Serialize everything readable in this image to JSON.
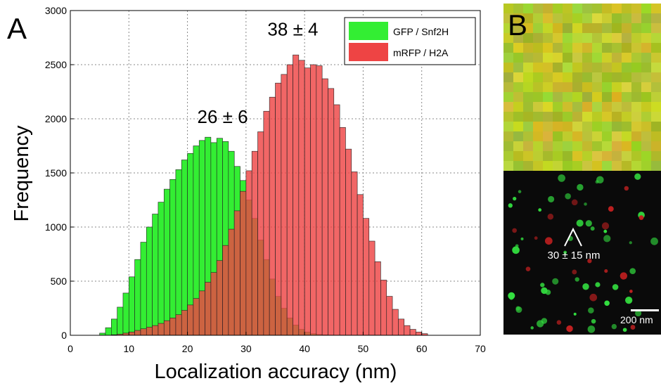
{
  "panel_a_label": "A",
  "panel_b_label": "B",
  "chart_data": {
    "type": "bar",
    "xlabel": "Localization accuracy (nm)",
    "ylabel": "Frequency",
    "xlim": [
      0,
      70
    ],
    "ylim": [
      0,
      3000
    ],
    "xticks": [
      0,
      10,
      20,
      30,
      40,
      50,
      60,
      70
    ],
    "yticks": [
      0,
      500,
      1000,
      1500,
      2000,
      2500,
      3000
    ],
    "grid": true,
    "legend_position": "top-right",
    "bin_start": 5,
    "bin_width": 1,
    "series": [
      {
        "name": "GFP / Snf2H",
        "color": "#33ee33",
        "values": [
          20,
          70,
          150,
          260,
          390,
          540,
          700,
          860,
          1000,
          1120,
          1230,
          1350,
          1440,
          1530,
          1620,
          1680,
          1750,
          1800,
          1830,
          1780,
          1820,
          1790,
          1700,
          1560,
          1430,
          1250,
          1080,
          880,
          700,
          520,
          360,
          250,
          160,
          95,
          55,
          30,
          15,
          8,
          4,
          2
        ]
      },
      {
        "name": "mRFP / H2A",
        "color": "#ee4444",
        "values": [
          0,
          0,
          5,
          10,
          20,
          30,
          45,
          60,
          75,
          90,
          110,
          135,
          160,
          190,
          230,
          280,
          340,
          410,
          490,
          580,
          690,
          830,
          980,
          1150,
          1330,
          1520,
          1700,
          1880,
          2070,
          2200,
          2330,
          2410,
          2500,
          2590,
          2540,
          2470,
          2500,
          2490,
          2370,
          2280,
          2130,
          1920,
          1720,
          1510,
          1300,
          1080,
          870,
          680,
          510,
          360,
          240,
          150,
          90,
          55,
          30,
          15
        ]
      }
    ],
    "annotations": [
      {
        "text": "26 ± 6",
        "x": 26,
        "y": 1960
      },
      {
        "text": "38 ± 4",
        "x": 38,
        "y": 2770
      }
    ]
  },
  "panel_b": {
    "distance_label": "30 ± 15 nm",
    "scale_bar_label": "200 nm"
  }
}
